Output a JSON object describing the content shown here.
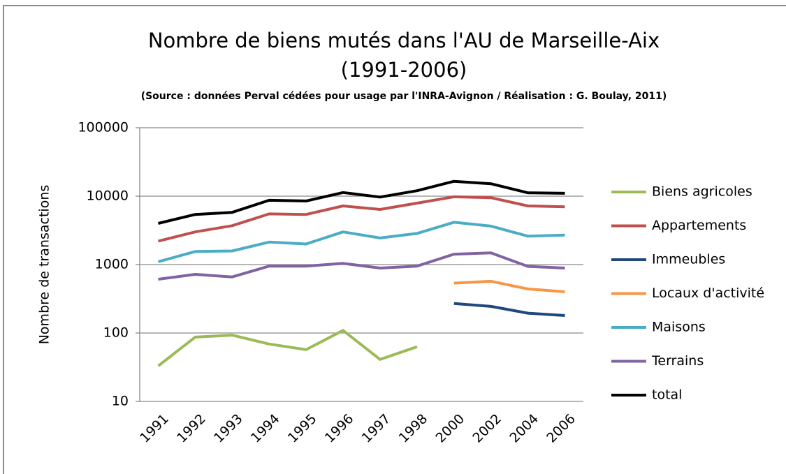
{
  "chart_data": {
    "type": "line",
    "title": [
      "Nombre de biens mutés dans l'AU de Marseille-Aix",
      "(1991-2006)"
    ],
    "subtitle": "(Source : données Perval cédées pour usage par l'INRA-Avignon / Réalisation : G. Boulay, 2011)",
    "y_label": "Nombre de transactions",
    "categories": [
      "1991",
      "1992",
      "1993",
      "1994",
      "1995",
      "1996",
      "1997",
      "1998",
      "2000",
      "2002",
      "2004",
      "2006"
    ],
    "log_scale": true,
    "ylim": [
      10,
      100000
    ],
    "yticks": [
      10,
      100,
      1000,
      10000,
      100000
    ],
    "grid": true,
    "legend": "right",
    "series": [
      {
        "name": "Biens agricoles",
        "color": "#9bbb59",
        "values": [
          33,
          87,
          93,
          69,
          57,
          109,
          41,
          63,
          null,
          null,
          null,
          null
        ]
      },
      {
        "name": "Appartements",
        "color": "#c0504d",
        "values": [
          2200,
          3000,
          3700,
          5500,
          5400,
          7200,
          6400,
          7900,
          9800,
          9500,
          7200,
          7000
        ]
      },
      {
        "name": "Immeubles",
        "color": "#1f497d",
        "values": [
          null,
          null,
          null,
          null,
          null,
          null,
          null,
          null,
          270,
          245,
          195,
          180
        ]
      },
      {
        "name": "Locaux d'activité",
        "color": "#f79646",
        "values": [
          null,
          null,
          null,
          null,
          null,
          null,
          null,
          null,
          535,
          570,
          440,
          400
        ]
      },
      {
        "name": "Maisons",
        "color": "#4bacc6",
        "values": [
          1100,
          1550,
          1580,
          2130,
          2000,
          3000,
          2450,
          2850,
          4150,
          3650,
          2600,
          2700
        ]
      },
      {
        "name": "Terrains",
        "color": "#8064a2",
        "values": [
          610,
          720,
          660,
          950,
          950,
          1040,
          890,
          950,
          1420,
          1480,
          940,
          890
        ]
      },
      {
        "name": "total",
        "color": "#000000",
        "values": [
          4000,
          5400,
          5800,
          8700,
          8500,
          11300,
          9700,
          12000,
          16500,
          15200,
          11200,
          11000
        ]
      }
    ]
  }
}
